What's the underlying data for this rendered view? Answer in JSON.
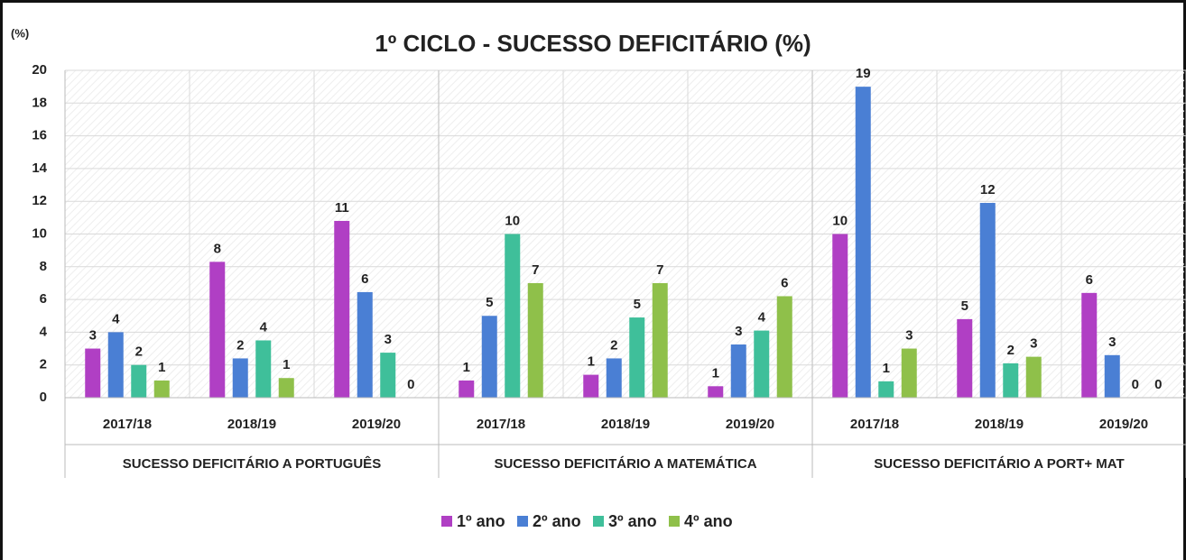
{
  "chart_data": {
    "type": "bar",
    "title": "1º CICLO - SUCESSO DEFICITÁRIO (%)",
    "y_label": "(%)",
    "groups": [
      {
        "name": "SUCESSO DEFICITÁRIO A PORTUGUÊS",
        "categories": [
          "2017/18",
          "2018/19",
          "2019/20"
        ]
      },
      {
        "name": "SUCESSO DEFICITÁRIO A MATEMÁTICA",
        "categories": [
          "2017/18",
          "2018/19",
          "2019/20"
        ]
      },
      {
        "name": "SUCESSO DEFICITÁRIO A PORT+ MAT",
        "categories": [
          "2017/18",
          "2018/19",
          "2019/20"
        ]
      }
    ],
    "series": [
      {
        "name": "1º ano",
        "color": "#b03fc4",
        "values": [
          3,
          8.3,
          10.8,
          1.05,
          1.4,
          0.7,
          10,
          4.8,
          6.4
        ],
        "value_labels": [
          "3",
          "8",
          "11",
          "1",
          "1",
          "1",
          "10",
          "5",
          "6"
        ]
      },
      {
        "name": "2º ano",
        "color": "#4a7fd4",
        "values": [
          4,
          2.4,
          6.45,
          5,
          2.4,
          3.25,
          19,
          11.9,
          2.6
        ],
        "value_labels": [
          "4",
          "2",
          "6",
          "5",
          "2",
          "3",
          "19",
          "12",
          "3"
        ]
      },
      {
        "name": "3º ano",
        "color": "#3fbf9a",
        "values": [
          2,
          3.5,
          2.75,
          10,
          4.9,
          4.1,
          1,
          2.1,
          0
        ],
        "value_labels": [
          "2",
          "4",
          "3",
          "10",
          "5",
          "4",
          "1",
          "2",
          "0"
        ]
      },
      {
        "name": "4º ano",
        "color": "#8fc04a",
        "values": [
          1.05,
          1.2,
          0,
          7,
          7,
          6.2,
          3,
          2.5,
          0
        ],
        "value_labels": [
          "1",
          "1",
          "0",
          "7",
          "7",
          "6",
          "3",
          "3",
          "0"
        ]
      }
    ],
    "ylim": [
      0,
      20
    ],
    "yticks": [
      0,
      2,
      4,
      6,
      8,
      10,
      12,
      14,
      16,
      18,
      20
    ],
    "grid": true,
    "legend": "bottom"
  }
}
